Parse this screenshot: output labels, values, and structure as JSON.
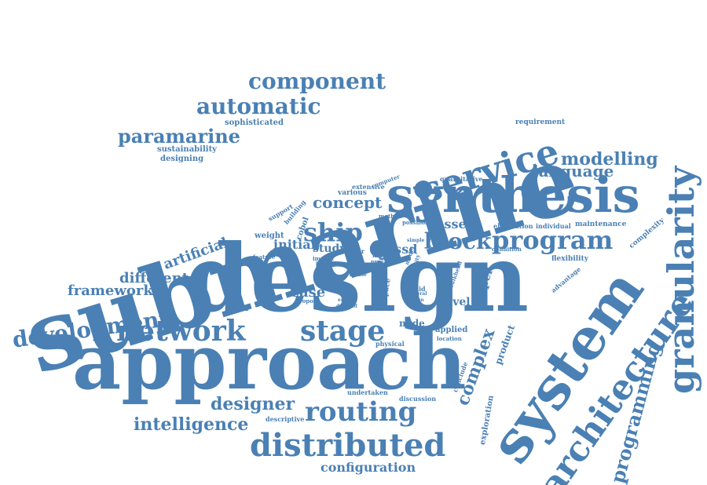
{
  "cloud": {
    "color": "#4A80B4",
    "words": {
      "submarine": "submarine",
      "design": "design",
      "approach": "approach",
      "synthesis": "synthesis",
      "system": "system",
      "granularity": "granularity",
      "architecture": "architecture",
      "service": "service",
      "program": "program",
      "routing": "routing",
      "distributed": "distributed",
      "network": "network",
      "stage": "stage",
      "development": "development",
      "component": "component",
      "automatic": "automatic",
      "paramarine": "paramarine",
      "ship": "ship",
      "block": "block",
      "intelligence": "intelligence",
      "designer": "designer",
      "configuration": "configuration",
      "programming": "programming",
      "complex": "complex",
      "modelling": "modelling",
      "language": "language",
      "concept": "concept",
      "different": "different",
      "framework": "framework",
      "artificial": "artificial",
      "case": "case",
      "initial": "initial",
      "study": "study",
      "vessel": "vessel",
      "essd": "essd",
      "tool": "tool",
      "paper": "paper",
      "product": "product",
      "exploration": "exploration",
      "level": "level",
      "applied": "applied",
      "location": "location",
      "node": "node",
      "physical": "physical",
      "undertaken": "undertaken",
      "discussion": "discussion",
      "descriptive": "descriptive",
      "conclude": "conclude",
      "sophisticated": "sophisticated",
      "sustainability": "sustainability",
      "designing": "designing",
      "requirement": "requirement",
      "complexity": "complexity",
      "flexibility": "flexibility",
      "advantage": "advantage",
      "maintenance": "maintenance",
      "elucidation": "elucidation",
      "individual": "individual",
      "definition": "definition",
      "quantitative": "quantitative",
      "extensive": "extensive",
      "computer": "computer",
      "various": "various",
      "cobol": "cobol",
      "building": "building",
      "support": "support",
      "weight": "weight",
      "feature": "feature",
      "method": "method",
      "possible": "possible",
      "simple": "simple",
      "major": "major",
      "novel": "novel",
      "proc": "proc",
      "naval": "naval",
      "model": "model",
      "ability": "ability",
      "space": "space",
      "rapid": "rapid",
      "bulkhead": "bulkhead",
      "general": "general",
      "option": "option",
      "impact": "impact",
      "better": "better",
      "propose": "propose",
      "enable": "enable",
      "demand": "demand",
      "ingest": "ingest",
      "case2": "case"
    }
  }
}
